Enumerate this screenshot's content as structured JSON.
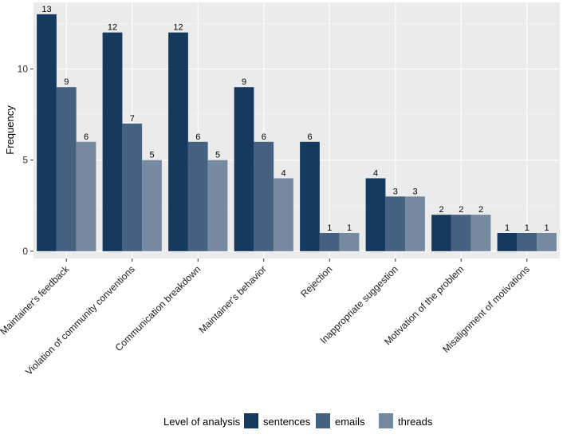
{
  "chart_data": {
    "type": "bar",
    "title": "",
    "xlabel": "",
    "ylabel": "Frequency",
    "ylim": [
      -0.4,
      13.65
    ],
    "yticks": [
      0,
      5,
      10
    ],
    "categories": [
      "Maintainer's feedback",
      "Violation of community conventions",
      "Communication breakdown",
      "Maintainer's behavior",
      "Rejection",
      "Inappropriate suggestion",
      "Motivation of the problem",
      "Misalignment of motivations"
    ],
    "series": [
      {
        "name": "sentences",
        "color": "#163a5f",
        "values": [
          13,
          12,
          12,
          9,
          6,
          4,
          2,
          1
        ]
      },
      {
        "name": "emails",
        "color": "#44627f",
        "values": [
          9,
          7,
          6,
          6,
          1,
          3,
          2,
          1
        ]
      },
      {
        "name": "threads",
        "color": "#7589a1",
        "values": [
          6,
          5,
          5,
          4,
          1,
          3,
          2,
          1
        ]
      }
    ],
    "legend": {
      "title": "Level of analysis",
      "position": "bottom"
    },
    "grid": true,
    "panel_background": "#ebebeb"
  }
}
